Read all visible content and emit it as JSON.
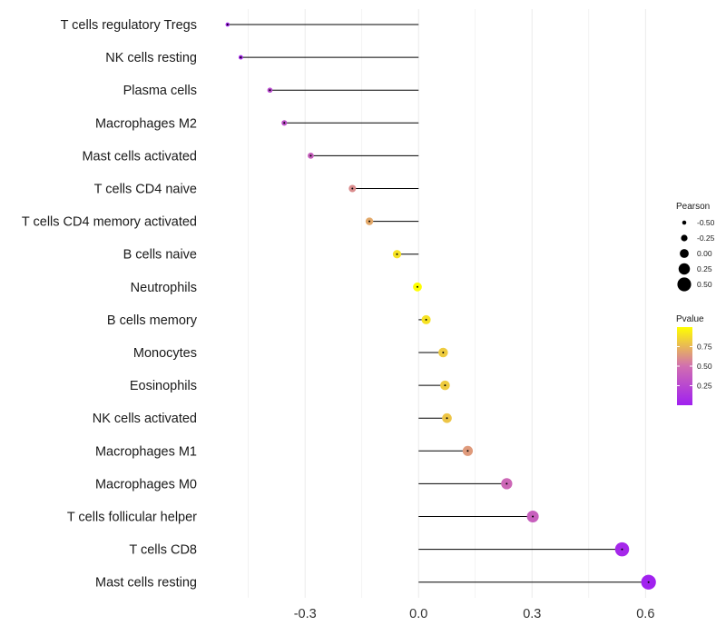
{
  "chart_data": {
    "type": "lollipop",
    "title": "",
    "xlabel": "",
    "ylabel": "",
    "xlim": [
      -0.55,
      0.64
    ],
    "xticks": [
      -0.3,
      0.0,
      0.3,
      0.6
    ],
    "xtick_labels": [
      "-0.3",
      "0.0",
      "0.3",
      "0.6"
    ],
    "grid": true,
    "categories": [
      "T cells regulatory  Tregs",
      "NK cells resting",
      "Plasma cells",
      "Macrophages M2",
      "Mast cells activated",
      "T cells CD4 naive",
      "T cells CD4 memory activated",
      "B cells naive",
      "Neutrophils",
      "B cells memory",
      "Monocytes",
      "Eosinophils",
      "NK cells activated",
      "Macrophages M1",
      "Macrophages M0",
      "T cells follicular helper",
      "T cells CD8",
      "Mast cells resting"
    ],
    "values": [
      -0.505,
      -0.47,
      -0.393,
      -0.355,
      -0.285,
      -0.175,
      -0.13,
      -0.057,
      -0.003,
      0.02,
      0.065,
      0.07,
      0.075,
      0.13,
      0.233,
      0.302,
      0.538,
      0.608
    ],
    "pvalues": [
      0.02,
      0.05,
      0.25,
      0.3,
      0.4,
      0.6,
      0.7,
      0.9,
      1.0,
      0.9,
      0.82,
      0.82,
      0.8,
      0.65,
      0.45,
      0.4,
      0.05,
      0.01
    ],
    "legends": {
      "size": {
        "title": "Pearson",
        "breaks": [
          -0.5,
          -0.25,
          0.0,
          0.25,
          0.5
        ],
        "labels": [
          "-0.50",
          "-0.25",
          "0.00",
          "0.25",
          "0.50"
        ]
      },
      "color": {
        "title": "Pvalue",
        "breaks": [
          0.75,
          0.5,
          0.25
        ],
        "labels": [
          "0.75",
          "0.50",
          "0.25"
        ],
        "range": [
          0.0,
          1.0
        ],
        "low_color": "#A020F0",
        "mid_color": "#D16FB0",
        "high_color": "#FFFF00"
      }
    }
  },
  "colors": {
    "grid": "#ebebeb",
    "segment": "#000000",
    "text": "#1a1a1a"
  }
}
